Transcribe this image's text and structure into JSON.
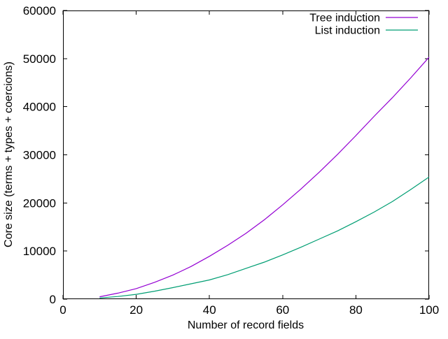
{
  "chart_data": {
    "type": "line",
    "title": "",
    "xlabel": "Number of record fields",
    "ylabel": "Core size (terms + types + coercions)",
    "xlim": [
      0,
      100
    ],
    "ylim": [
      0,
      60000
    ],
    "xticks": [
      0,
      20,
      40,
      60,
      80,
      100
    ],
    "yticks": [
      0,
      10000,
      20000,
      30000,
      40000,
      50000,
      60000
    ],
    "grid": false,
    "legend_position": "top-right-inside",
    "background_color": "#ffffff",
    "axis_color": "#000000",
    "x": [
      10,
      15,
      20,
      25,
      30,
      35,
      40,
      45,
      50,
      55,
      60,
      65,
      70,
      75,
      80,
      85,
      90,
      95,
      100
    ],
    "series": [
      {
        "name": "Tree induction",
        "color": "#9400d3",
        "values": [
          500,
          1250,
          2200,
          3500,
          5000,
          6800,
          8900,
          11200,
          13700,
          16500,
          19600,
          22900,
          26400,
          30100,
          34000,
          38000,
          41900,
          46000,
          50300
        ]
      },
      {
        "name": "List induction",
        "color": "#009e73",
        "values": [
          250,
          550,
          1000,
          1650,
          2400,
          3200,
          4000,
          5100,
          6400,
          7700,
          9200,
          10800,
          12500,
          14200,
          16100,
          18100,
          20300,
          22800,
          25400
        ]
      }
    ]
  }
}
